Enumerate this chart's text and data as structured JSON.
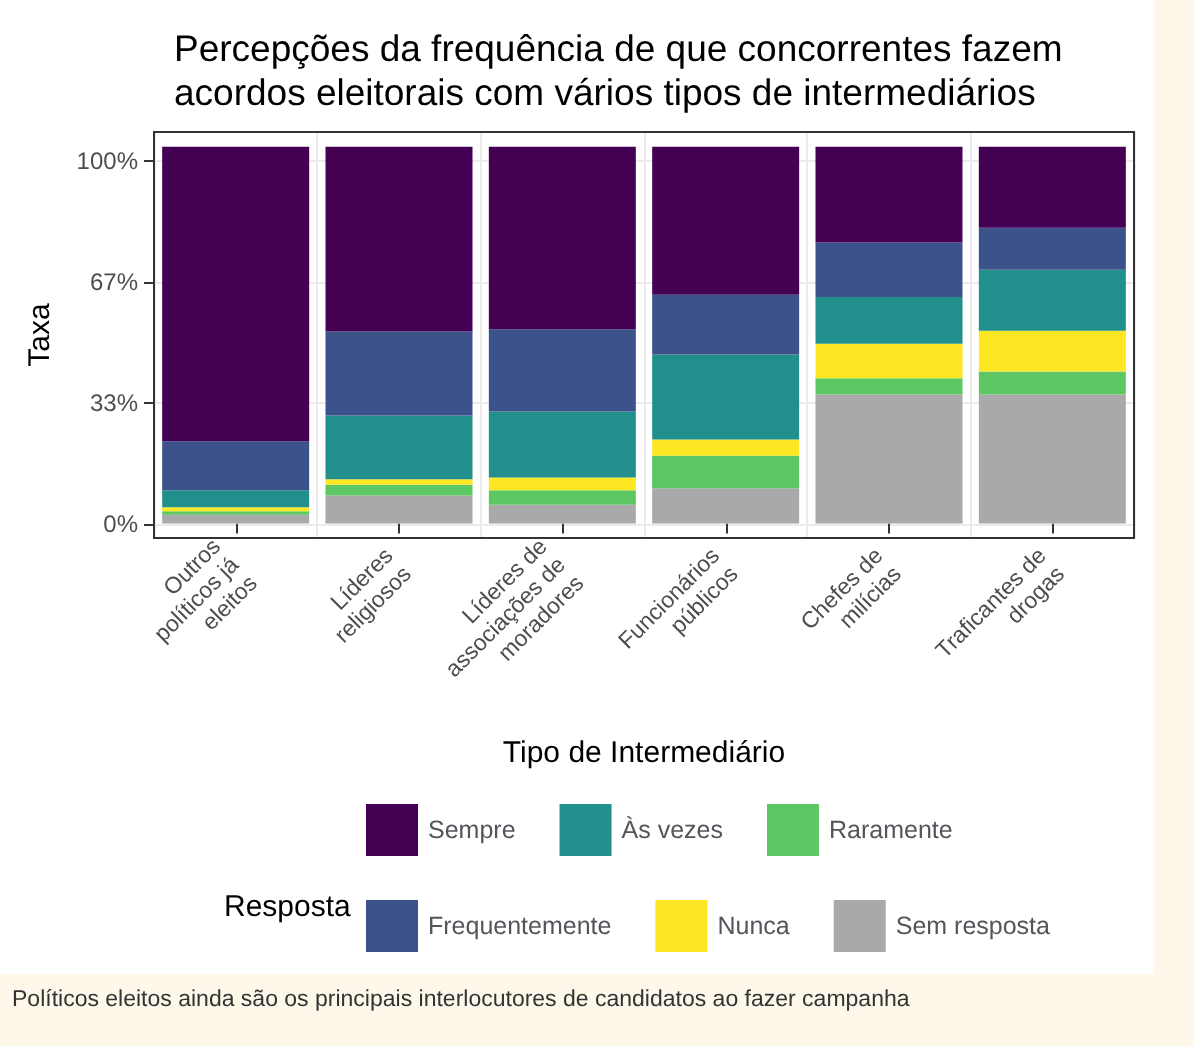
{
  "chart_data": {
    "type": "bar",
    "stacked": true,
    "title": "Percepções da frequência de que concorrentes fazem\nacordos eleitorais com vários tipos de intermediários",
    "xlabel": "Tipo de Intermediário",
    "ylabel": "Taxa",
    "legend_title": "Resposta",
    "legend": "bottom",
    "grid": true,
    "categories": [
      "Outros\npolíticos já\neleitos",
      "Líderes\nreligiosos",
      "Líderes de\nassociações de\nmoradores",
      "Funcionários\npúblicos",
      "Chefes de\nmilícias",
      "Traficantes de\ndrogas"
    ],
    "ylim": [
      -4,
      108
    ],
    "yticks": [
      {
        "value": 0,
        "label": "0%"
      },
      {
        "value": 33.3,
        "label": "33%"
      },
      {
        "value": 66.7,
        "label": "67%"
      },
      {
        "value": 100,
        "label": "100%"
      }
    ],
    "series": [
      {
        "name": "Sem resposta",
        "color": "#a9a9a9",
        "values": [
          2.4,
          7.7,
          5.2,
          9.7,
          35.6,
          35.6
        ]
      },
      {
        "name": "Raramente",
        "color": "#5dc863",
        "values": [
          1.0,
          3.0,
          4.0,
          9.0,
          4.5,
          6.3
        ]
      },
      {
        "name": "Nunca",
        "color": "#fde725",
        "values": [
          1.1,
          1.5,
          3.5,
          4.5,
          9.5,
          11.3
        ]
      },
      {
        "name": "Às vezes",
        "color": "#21908c",
        "values": [
          4.7,
          17.6,
          18.2,
          23.4,
          12.9,
          16.8
        ]
      },
      {
        "name": "Frequentemente",
        "color": "#3b528b",
        "values": [
          13.5,
          23.2,
          22.7,
          16.5,
          15.0,
          11.6
        ]
      },
      {
        "name": "Sempre",
        "color": "#440154",
        "values": [
          81.2,
          50.9,
          50.3,
          40.8,
          26.4,
          22.3
        ]
      }
    ],
    "annotations": [
      "Políticos eleitos ainda são os principais interlocutores de candidatos ao fazer campanha"
    ]
  }
}
